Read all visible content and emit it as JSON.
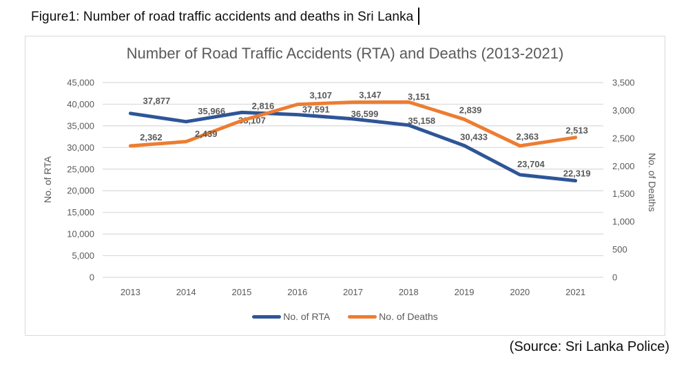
{
  "figure_caption": "Figure1: Number of road traffic accidents and deaths in Sri Lanka",
  "source_note": "(Source: Sri Lanka Police)",
  "chart_data": {
    "type": "line",
    "title": "Number of Road Traffic Accidents (RTA) and Deaths (2013-2021)",
    "categories": [
      "2013",
      "2014",
      "2015",
      "2016",
      "2017",
      "2018",
      "2019",
      "2020",
      "2021"
    ],
    "series": [
      {
        "name": "No. of RTA",
        "axis": "left",
        "color": "#2E5597",
        "values": [
          37877,
          35966,
          38107,
          37591,
          36599,
          35158,
          30433,
          23704,
          22319
        ],
        "label_dx": [
          38,
          37,
          15,
          27,
          17,
          19,
          14,
          16,
          2
        ],
        "label_dy": [
          -14,
          -11,
          16,
          -3,
          -3,
          -2,
          -8,
          -11,
          -6
        ]
      },
      {
        "name": "No. of Deaths",
        "axis": "right",
        "color": "#ED7D31",
        "values": [
          2362,
          2439,
          2816,
          3107,
          3147,
          3151,
          2839,
          2363,
          2513
        ],
        "label_dx": [
          30,
          29,
          31,
          34,
          25,
          15,
          9,
          11,
          2
        ],
        "label_dy": [
          -8,
          -7,
          -17,
          -9,
          -6,
          -3,
          -9,
          -9,
          -6
        ]
      }
    ],
    "left_axis": {
      "title": "No. of RTA",
      "min": 0,
      "max": 45000,
      "step": 5000
    },
    "right_axis": {
      "title": "No. of Deaths",
      "min": 0,
      "max": 3500,
      "step": 500
    },
    "grid": "horizontal",
    "gridline_color": "#d9d9d9",
    "legend_position": "bottom",
    "data_labels": true
  }
}
